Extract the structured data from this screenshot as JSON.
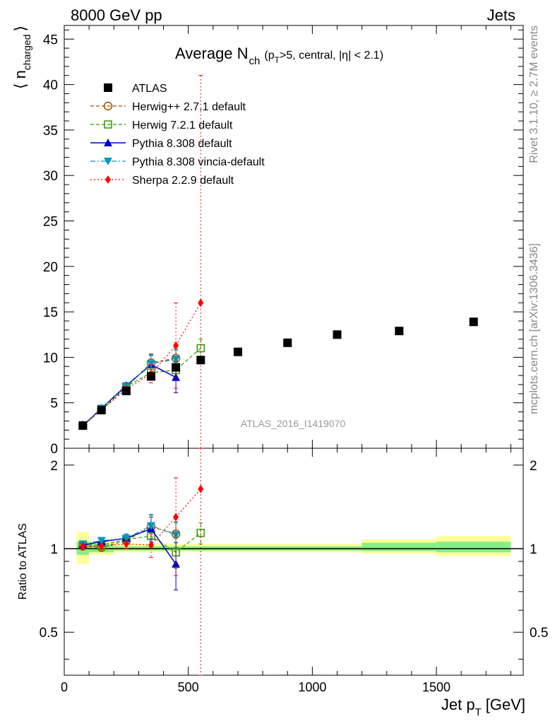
{
  "header": {
    "left": "8000 GeV pp",
    "right": "Jets",
    "side_top": "Rivet 3.1.10, ≥ 2.7M events",
    "side_bottom": "mcplots.cern.ch [arXiv:1306.3436]",
    "analysis_tag": "ATLAS_2016_I1419070"
  },
  "chart_data": [
    {
      "id": "main",
      "type": "scatter",
      "title_main": "Average N",
      "title_sub": "ch",
      "title_rest1": "(p",
      "title_sub2": "T",
      "title_rest2": ">5, central, |η| < 2.1)",
      "ylabel": "⟨ n",
      "ylabel_sub": "charged",
      "ylabel_close": "⟩",
      "xlim": [
        0,
        1850
      ],
      "ylim": [
        0,
        46.5
      ],
      "yticks": [
        "0",
        "5",
        "10",
        "15",
        "20",
        "25",
        "30",
        "35",
        "40",
        "45"
      ],
      "legend": [
        {
          "label": "ATLAS",
          "color": "#000000",
          "marker": "square-filled",
          "line": "none"
        },
        {
          "label": "Herwig++ 2.7.1 default",
          "color": "#a05000",
          "marker": "circle-open",
          "line": "dashed"
        },
        {
          "label": "Herwig 7.2.1 default",
          "color": "#339900",
          "marker": "square-open",
          "line": "dashed"
        },
        {
          "label": "Pythia 8.308 default",
          "color": "#0000cc",
          "marker": "triangle-up",
          "line": "solid"
        },
        {
          "label": "Pythia 8.308 vincia-default",
          "color": "#0099bb",
          "marker": "triangle-down",
          "line": "dashdot"
        },
        {
          "label": "Sherpa 2.2.9 default",
          "color": "#ff0000",
          "marker": "diamond",
          "line": "dotted"
        }
      ],
      "data_x": [
        75,
        150,
        250,
        350,
        450,
        550,
        700,
        900,
        1100,
        1350,
        1650
      ],
      "data_y": [
        2.5,
        4.2,
        6.3,
        7.9,
        8.9,
        9.7,
        10.6,
        11.6,
        12.5,
        12.9,
        13.9
      ],
      "series": [
        {
          "name": "Herwig++ 2.7.1 default",
          "x": [
            75,
            150,
            250,
            350,
            450
          ],
          "y": [
            2.5,
            4.2,
            6.7,
            9.4,
            9.9
          ],
          "err": [
            0.1,
            0.2,
            0.3,
            1.0,
            1.0
          ]
        },
        {
          "name": "Herwig 7.2.1 default",
          "x": [
            75,
            150,
            250,
            350,
            450,
            550
          ],
          "y": [
            2.5,
            4.3,
            6.8,
            8.3,
            8.6,
            11.0
          ],
          "err": [
            0.1,
            0.2,
            0.3,
            0.8,
            1.0,
            1.0
          ]
        },
        {
          "name": "Pythia 8.308 default",
          "x": [
            75,
            150,
            250,
            350,
            450
          ],
          "y": [
            2.5,
            4.4,
            6.9,
            9.2,
            7.8
          ],
          "err": [
            0.1,
            0.2,
            0.3,
            1.0,
            1.7
          ]
        },
        {
          "name": "Pythia 8.308 vincia-default",
          "x": [
            75,
            150,
            250,
            350,
            450
          ],
          "y": [
            2.5,
            4.4,
            6.8,
            9.3,
            9.8
          ],
          "err": [
            0.1,
            0.2,
            0.3,
            1.0,
            1.0
          ]
        },
        {
          "name": "Sherpa 2.2.9 default",
          "x": [
            75,
            150,
            250,
            350,
            450,
            550
          ],
          "y": [
            2.5,
            4.2,
            6.5,
            8.2,
            11.3,
            16.0
          ],
          "err": [
            0.1,
            0.2,
            0.3,
            1.0,
            4.7,
            25.0
          ]
        }
      ]
    },
    {
      "id": "ratio",
      "type": "line",
      "ylabel": "Ratio to ATLAS",
      "xlabel": "Jet p",
      "xlabel_sub": "T",
      "xlabel_unit": "[GeV]",
      "xlim": [
        0,
        1850
      ],
      "ylim": [
        0.35,
        2.3
      ],
      "yscale": "log",
      "yticks": [
        "0.5",
        "1",
        "2"
      ],
      "xticks": [
        "0",
        "500",
        "1000",
        "1500"
      ],
      "bands": [
        {
          "x0": 50,
          "x1": 100,
          "inner": [
            0.95,
            1.06
          ],
          "outer": [
            0.88,
            1.15
          ]
        },
        {
          "x0": 100,
          "x1": 200,
          "inner": [
            0.97,
            1.04
          ],
          "outer": [
            0.95,
            1.06
          ]
        },
        {
          "x0": 200,
          "x1": 1200,
          "inner": [
            0.985,
            1.02
          ],
          "outer": [
            0.97,
            1.04
          ]
        },
        {
          "x0": 1200,
          "x1": 1500,
          "inner": [
            0.98,
            1.05
          ],
          "outer": [
            0.96,
            1.08
          ]
        },
        {
          "x0": 1500,
          "x1": 1800,
          "inner": [
            0.97,
            1.06
          ],
          "outer": [
            0.94,
            1.11
          ]
        }
      ],
      "series": [
        {
          "name": "Herwig++ 2.7.1 default",
          "x": [
            75,
            150,
            250,
            350,
            450
          ],
          "y": [
            1.02,
            1.01,
            1.07,
            1.2,
            1.13
          ],
          "err": [
            0.02,
            0.02,
            0.04,
            0.12,
            0.12
          ]
        },
        {
          "name": "Herwig 7.2.1 default",
          "x": [
            75,
            150,
            250,
            350,
            450,
            550
          ],
          "y": [
            1.03,
            1.03,
            1.08,
            1.11,
            0.97,
            1.14
          ],
          "err": [
            0.02,
            0.02,
            0.04,
            0.1,
            0.12,
            0.1
          ]
        },
        {
          "name": "Pythia 8.308 default",
          "x": [
            75,
            150,
            250,
            350,
            450
          ],
          "y": [
            1.03,
            1.06,
            1.09,
            1.18,
            0.88
          ],
          "err": [
            0.02,
            0.02,
            0.04,
            0.12,
            0.17
          ]
        },
        {
          "name": "Pythia 8.308 vincia-default",
          "x": [
            75,
            150,
            250,
            350,
            450
          ],
          "y": [
            1.04,
            1.07,
            1.09,
            1.21,
            1.12
          ],
          "err": [
            0.02,
            0.02,
            0.04,
            0.12,
            0.12
          ]
        },
        {
          "name": "Sherpa 2.2.9 default",
          "x": [
            75,
            150,
            250,
            350,
            450,
            550
          ],
          "y": [
            1.02,
            1.02,
            1.04,
            1.03,
            1.3,
            1.64
          ],
          "err": [
            0.02,
            0.02,
            0.04,
            0.1,
            0.5,
            1.5
          ]
        }
      ]
    }
  ]
}
